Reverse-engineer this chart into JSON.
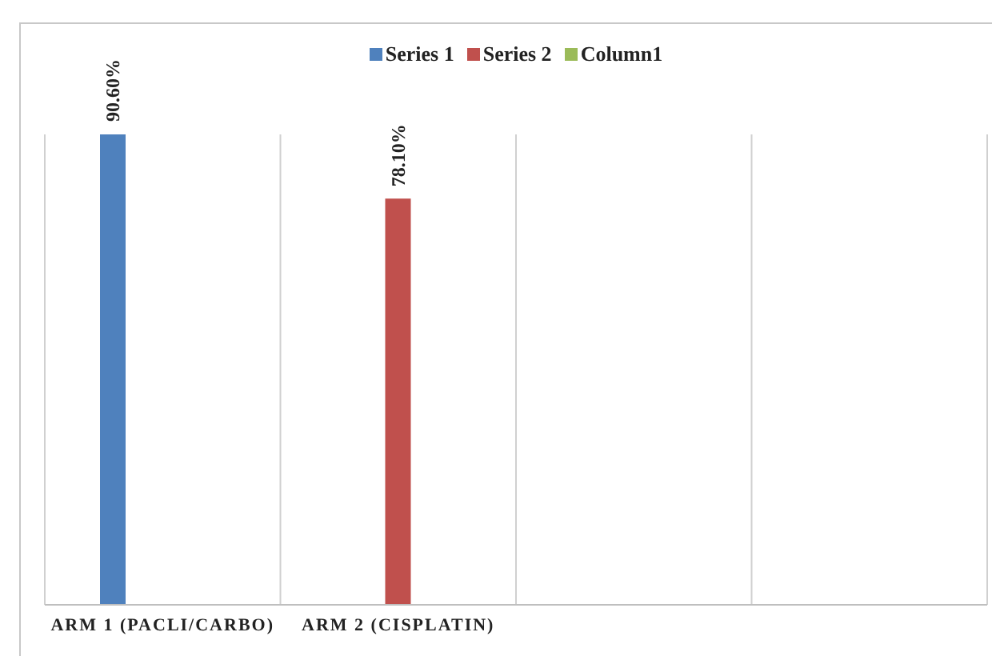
{
  "chart_data": {
    "type": "bar",
    "categories": [
      "ARM 1 (PACLI/CARBO)",
      "ARM 2 (CISPLATIN)",
      null,
      null
    ],
    "series": [
      {
        "name": "Series 1",
        "color": "#4f81bd",
        "values": [
          90.6,
          null,
          null,
          null
        ],
        "value_labels": [
          "90.60%",
          null,
          null,
          null
        ]
      },
      {
        "name": "Series 2",
        "color": "#c0504d",
        "values": [
          null,
          78.1,
          null,
          null
        ],
        "value_labels": [
          null,
          "78.10%",
          null,
          null
        ]
      },
      {
        "name": "Column1",
        "color": "#9bbb59",
        "values": [
          null,
          null,
          null,
          null
        ]
      }
    ],
    "tick_labels": "x",
    "grid": "x",
    "legend": "top"
  }
}
